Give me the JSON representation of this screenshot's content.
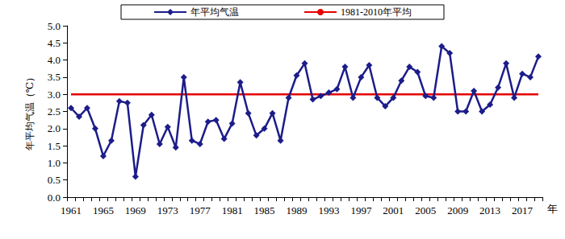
{
  "chart_data": {
    "type": "line",
    "y_label": "年平均气温（℃）",
    "x_label": "年",
    "categories": [
      1961,
      null,
      null,
      null,
      1965,
      null,
      null,
      null,
      1969,
      null,
      null,
      null,
      1973,
      null,
      null,
      null,
      1977,
      null,
      null,
      null,
      1981,
      null,
      null,
      null,
      1985,
      null,
      null,
      null,
      1989,
      null,
      null,
      null,
      1993,
      null,
      null,
      null,
      1997,
      null,
      null,
      null,
      2001,
      null,
      null,
      null,
      2005,
      null,
      null,
      null,
      2009,
      null,
      null,
      null,
      2013,
      null,
      null,
      null,
      2017,
      null,
      null
    ],
    "series": [
      {
        "name": "年平均气温",
        "color": "#1c1c8a",
        "marker": "diamond",
        "line_style": "solid",
        "values": [
          2.6,
          2.35,
          2.6,
          2.0,
          1.2,
          1.65,
          2.8,
          2.75,
          0.6,
          2.1,
          2.4,
          1.55,
          2.05,
          1.45,
          3.5,
          1.65,
          1.55,
          2.2,
          2.25,
          1.7,
          2.15,
          3.35,
          2.45,
          1.8,
          2.0,
          2.45,
          1.65,
          2.9,
          3.55,
          3.9,
          2.85,
          2.95,
          3.05,
          3.15,
          3.8,
          2.9,
          3.5,
          3.85,
          2.9,
          2.65,
          2.9,
          3.4,
          3.8,
          3.65,
          2.95,
          2.9,
          4.4,
          4.2,
          2.5,
          2.5,
          3.1,
          2.5,
          2.7,
          3.2,
          3.9,
          2.9,
          3.6,
          3.5,
          4.1
        ]
      },
      {
        "name": "1981-2010年平均",
        "color": "#e60000",
        "marker": "none",
        "line_style": "solid",
        "values": [
          3.0,
          3.0,
          3.0,
          3.0,
          3.0,
          3.0,
          3.0,
          3.0,
          3.0,
          3.0,
          3.0,
          3.0,
          3.0,
          3.0,
          3.0,
          3.0,
          3.0,
          3.0,
          3.0,
          3.0,
          3.0,
          3.0,
          3.0,
          3.0,
          3.0,
          3.0,
          3.0,
          3.0,
          3.0,
          3.0,
          3.0,
          3.0,
          3.0,
          3.0,
          3.0,
          3.0,
          3.0,
          3.0,
          3.0,
          3.0,
          3.0,
          3.0,
          3.0,
          3.0,
          3.0,
          3.0,
          3.0,
          3.0,
          3.0,
          3.0,
          3.0,
          3.0,
          3.0,
          3.0,
          3.0,
          3.0,
          3.0,
          3.0,
          3.0
        ]
      }
    ],
    "ylim": [
      0,
      5
    ],
    "yticks": [
      {
        "value": 0,
        "label": "0.0"
      },
      {
        "value": 0.5,
        "label": "0.5"
      },
      {
        "value": 1,
        "label": "1.0"
      },
      {
        "value": 1.5,
        "label": "1.5"
      },
      {
        "value": 2,
        "label": "2.0"
      },
      {
        "value": 2.5,
        "label": "2.5"
      },
      {
        "value": 3,
        "label": "3.0"
      },
      {
        "value": 3.5,
        "label": "3.5"
      },
      {
        "value": 4,
        "label": "4.0"
      },
      {
        "value": 4.5,
        "label": "4.5"
      },
      {
        "value": 5,
        "label": "5.0"
      }
    ],
    "grid": false,
    "legend": "top"
  }
}
